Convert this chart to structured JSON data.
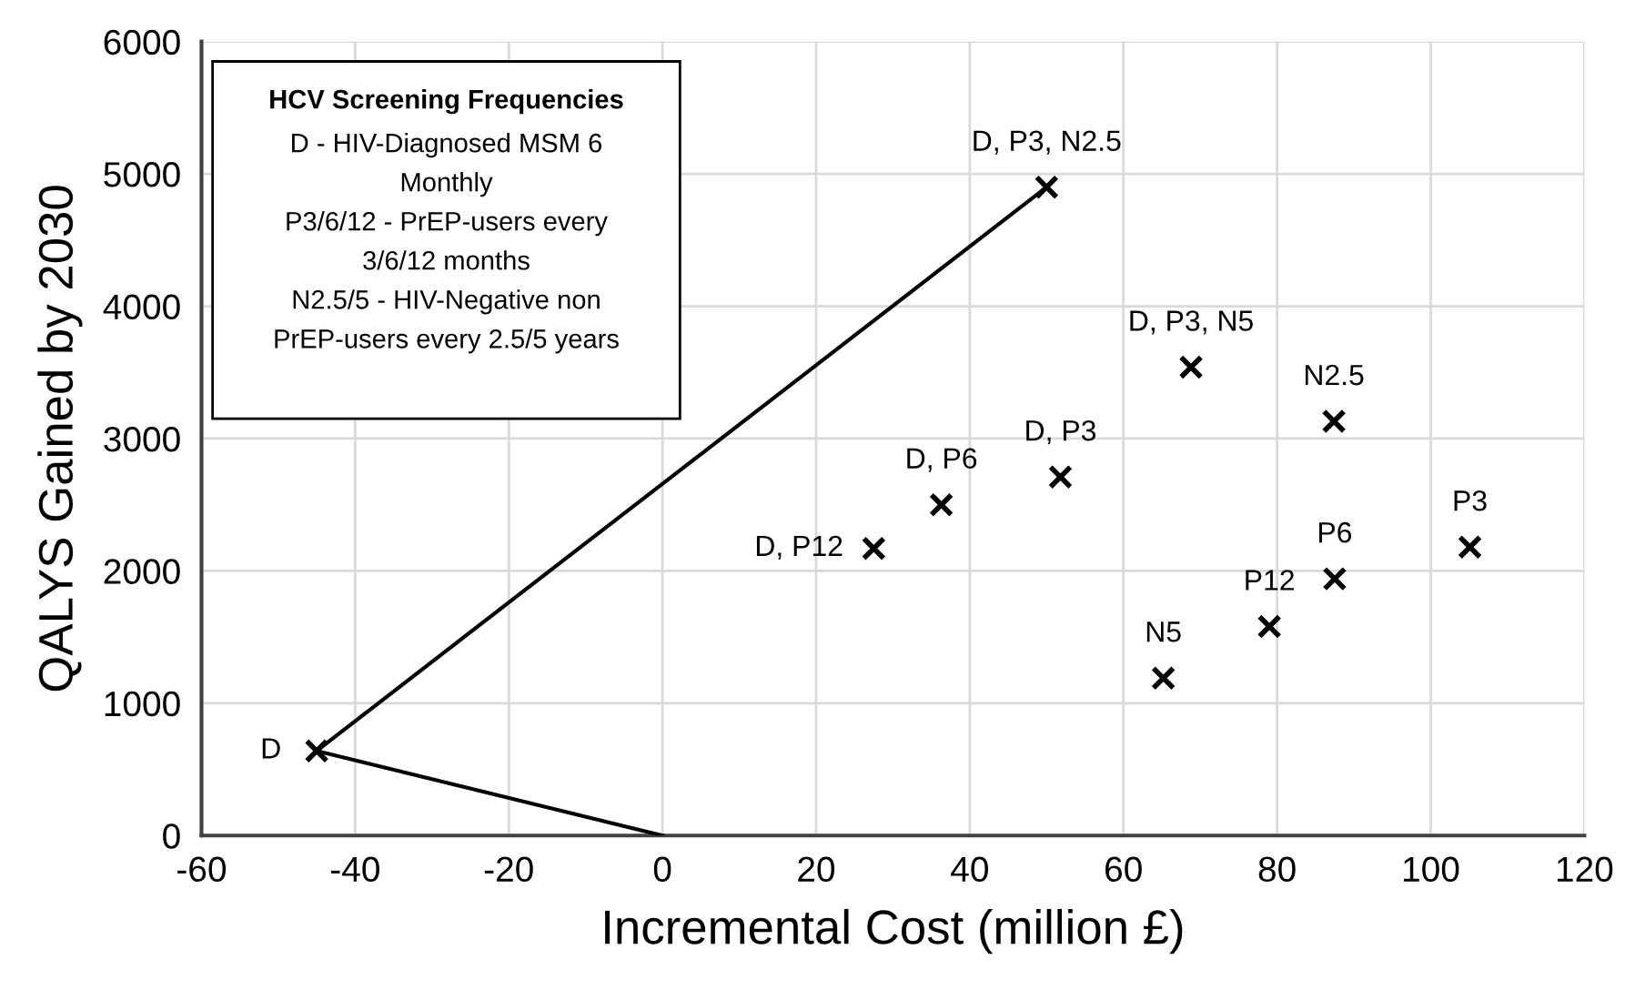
{
  "chart_data": {
    "type": "scatter",
    "xlabel": "Incremental Cost (million £)",
    "ylabel": "QALYS Gained by 2030",
    "xlim": [
      -60,
      120
    ],
    "xticks": [
      -60,
      -40,
      -20,
      0,
      20,
      40,
      60,
      80,
      100,
      120
    ],
    "ylim": [
      0,
      6000
    ],
    "yticks": [
      0,
      1000,
      2000,
      3000,
      4000,
      5000,
      6000
    ],
    "grid": true,
    "marker": "cross",
    "series": [
      {
        "type": "line",
        "color": "#000000",
        "x": [
          0,
          -45,
          50
        ],
        "values": [
          0,
          640,
          4900
        ],
        "marker": "none",
        "line_style": "solid"
      },
      {
        "color": "#000000",
        "x": [
          -45,
          27.5,
          36.3,
          51.8,
          50,
          68.8,
          65.2,
          79,
          87.4,
          87.5,
          105.1
        ],
        "values": [
          640,
          2170,
          2500,
          2710,
          4900,
          3540,
          1190,
          1580,
          3130,
          1940,
          2180
        ]
      }
    ],
    "annotations": [
      "HCV Screening Frequencies",
      "D - HIV-Diagnosed MSM 6\nMonthly\nP3/6/12 - PrEP-users every\n3/6/12 months\nN2.5/5 - HIV-Negative non\nPrEP-users every 2.5/5 years",
      {
        "text": "D",
        "x": -45,
        "y": 640
      },
      {
        "text": "D, P12",
        "x": 27.5,
        "y": 2170
      },
      {
        "text": "D, P6",
        "x": 36.3,
        "y": 2500
      },
      {
        "text": "D, P3",
        "x": 51.8,
        "y": 2710
      },
      {
        "text": "D, P3, N2.5",
        "x": 50,
        "y": 4900
      },
      {
        "text": "D, P3, N5",
        "x": 68.8,
        "y": 3540
      },
      {
        "text": "N5",
        "x": 65.2,
        "y": 1190
      },
      {
        "text": "P12",
        "x": 79,
        "y": 1580
      },
      {
        "text": "N2.5",
        "x": 87.4,
        "y": 3130
      },
      {
        "text": "P6",
        "x": 87.5,
        "y": 1940
      },
      {
        "text": "P3",
        "x": 105.1,
        "y": 2180
      }
    ]
  }
}
